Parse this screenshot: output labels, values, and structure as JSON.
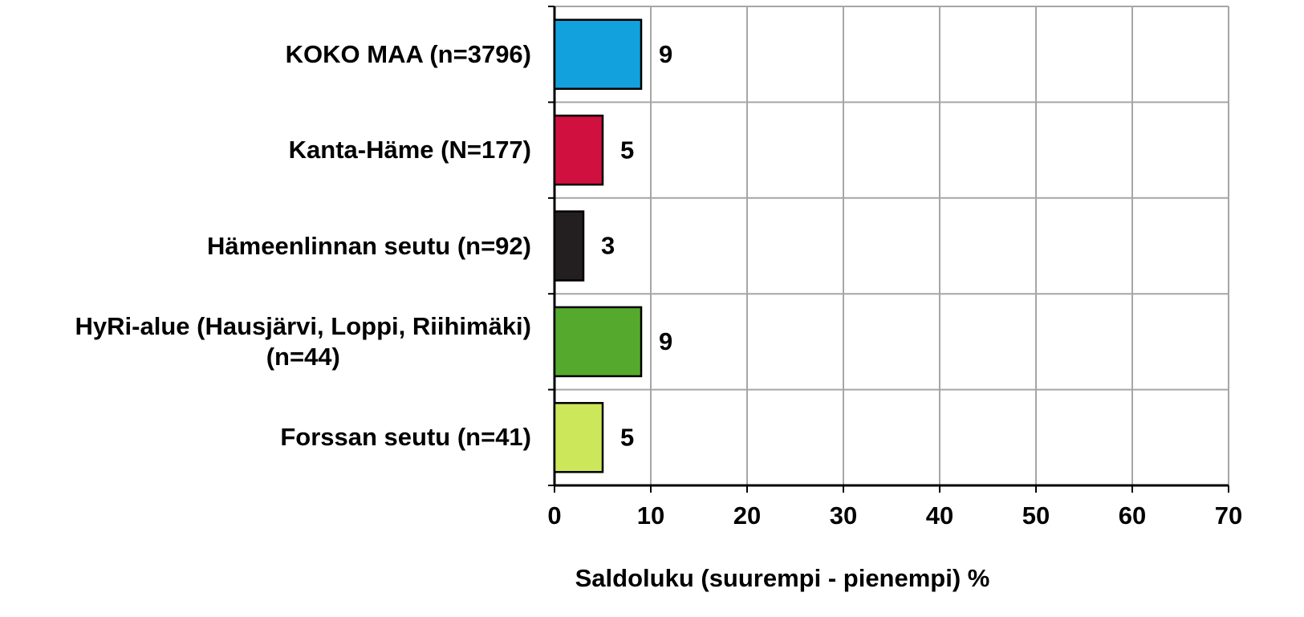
{
  "chart_data": {
    "type": "barh",
    "categories": [
      "KOKO MAA  (n=3796)",
      "Kanta-Häme (N=177)",
      "Hämeenlinnan seutu (n=92)",
      "HyRi-alue (Hausjärvi, Loppi,  Riihimäki)\n(n=44)",
      "Forssan seutu (n=41)"
    ],
    "values": [
      9,
      5,
      3,
      9,
      5
    ],
    "colors": [
      "#12a1dc",
      "#d0103f",
      "#231f20",
      "#55aa2e",
      "#cce85a"
    ],
    "xlabel": "Saldoluku (suurempi - pienempi) %",
    "xlim": [
      0,
      70
    ],
    "xticks": [
      0,
      10,
      20,
      30,
      40,
      50,
      60,
      70
    ],
    "grid": true
  }
}
